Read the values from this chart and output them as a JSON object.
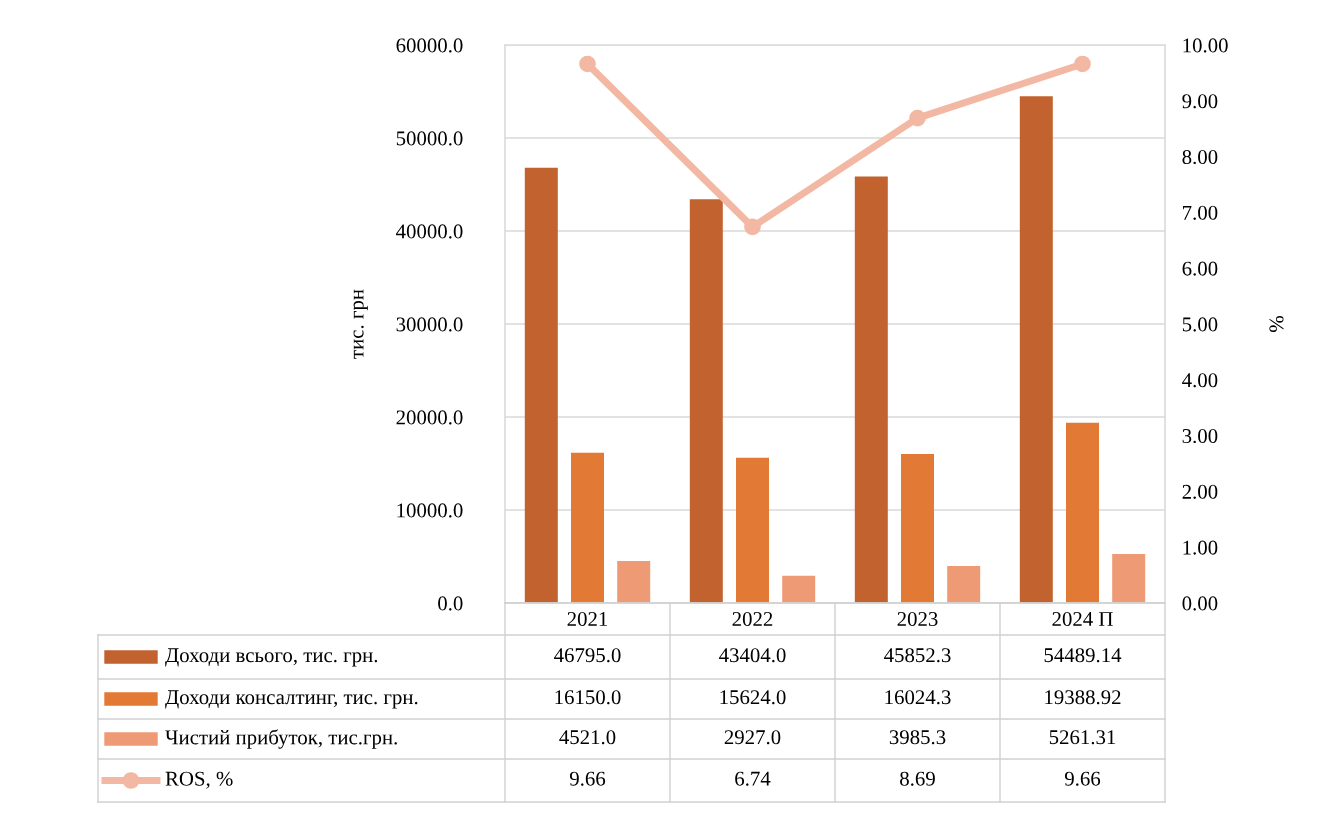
{
  "chart_data": {
    "type": "bar",
    "categories": [
      "2021",
      "2022",
      "2023",
      "2024 П"
    ],
    "ylabel": "тис. грн",
    "y2label": "%",
    "ylim": [
      0,
      60000
    ],
    "yticks": [
      {
        "value": 0,
        "label": "0.0"
      },
      {
        "value": 10000,
        "label": "10000.0"
      },
      {
        "value": 20000,
        "label": "20000.0"
      },
      {
        "value": 30000,
        "label": "30000.0"
      },
      {
        "value": 40000,
        "label": "40000.0"
      },
      {
        "value": 50000,
        "label": "50000.0"
      },
      {
        "value": 60000,
        "label": "60000.0"
      }
    ],
    "y2lim": [
      0,
      10
    ],
    "y2ticks": [
      {
        "value": 0,
        "label": "0.00"
      },
      {
        "value": 1,
        "label": "1.00"
      },
      {
        "value": 2,
        "label": "2.00"
      },
      {
        "value": 3,
        "label": "3.00"
      },
      {
        "value": 4,
        "label": "4.00"
      },
      {
        "value": 5,
        "label": "5.00"
      },
      {
        "value": 6,
        "label": "6.00"
      },
      {
        "value": 7,
        "label": "7.00"
      },
      {
        "value": 8,
        "label": "8.00"
      },
      {
        "value": 9,
        "label": "9.00"
      },
      {
        "value": 10,
        "label": "10.00"
      }
    ],
    "grid": "y",
    "legend": "bottom",
    "series": [
      {
        "name": "Доходи всього, тис. грн.",
        "color": "#c2622e",
        "values": [
          46795.0,
          43404.0,
          45852.3,
          54489.14
        ],
        "value_labels": [
          "46795.0",
          "43404.0",
          "45852.3",
          "54489.14"
        ]
      },
      {
        "name": "Доходи консалтинг, тис. грн.",
        "color": "#e27a36",
        "values": [
          16150.0,
          15624.0,
          16024.3,
          19388.92
        ],
        "value_labels": [
          "16150.0",
          "15624.0",
          "16024.3",
          "19388.92"
        ]
      },
      {
        "name": "Чистий прибуток, тис.грн.",
        "color": "#ee9a74",
        "values": [
          4521.0,
          2927.0,
          3985.3,
          5261.31
        ],
        "value_labels": [
          "4521.0",
          "2927.0",
          "3985.3",
          "5261.31"
        ]
      },
      {
        "name": "ROS, %",
        "type": "line",
        "axis": "y2",
        "marker": "circle",
        "color": "#f3b8a3",
        "values": [
          9.66,
          6.74,
          8.69,
          9.66
        ],
        "value_labels": [
          "9.66",
          "6.74",
          "8.69",
          "9.66"
        ]
      }
    ]
  }
}
